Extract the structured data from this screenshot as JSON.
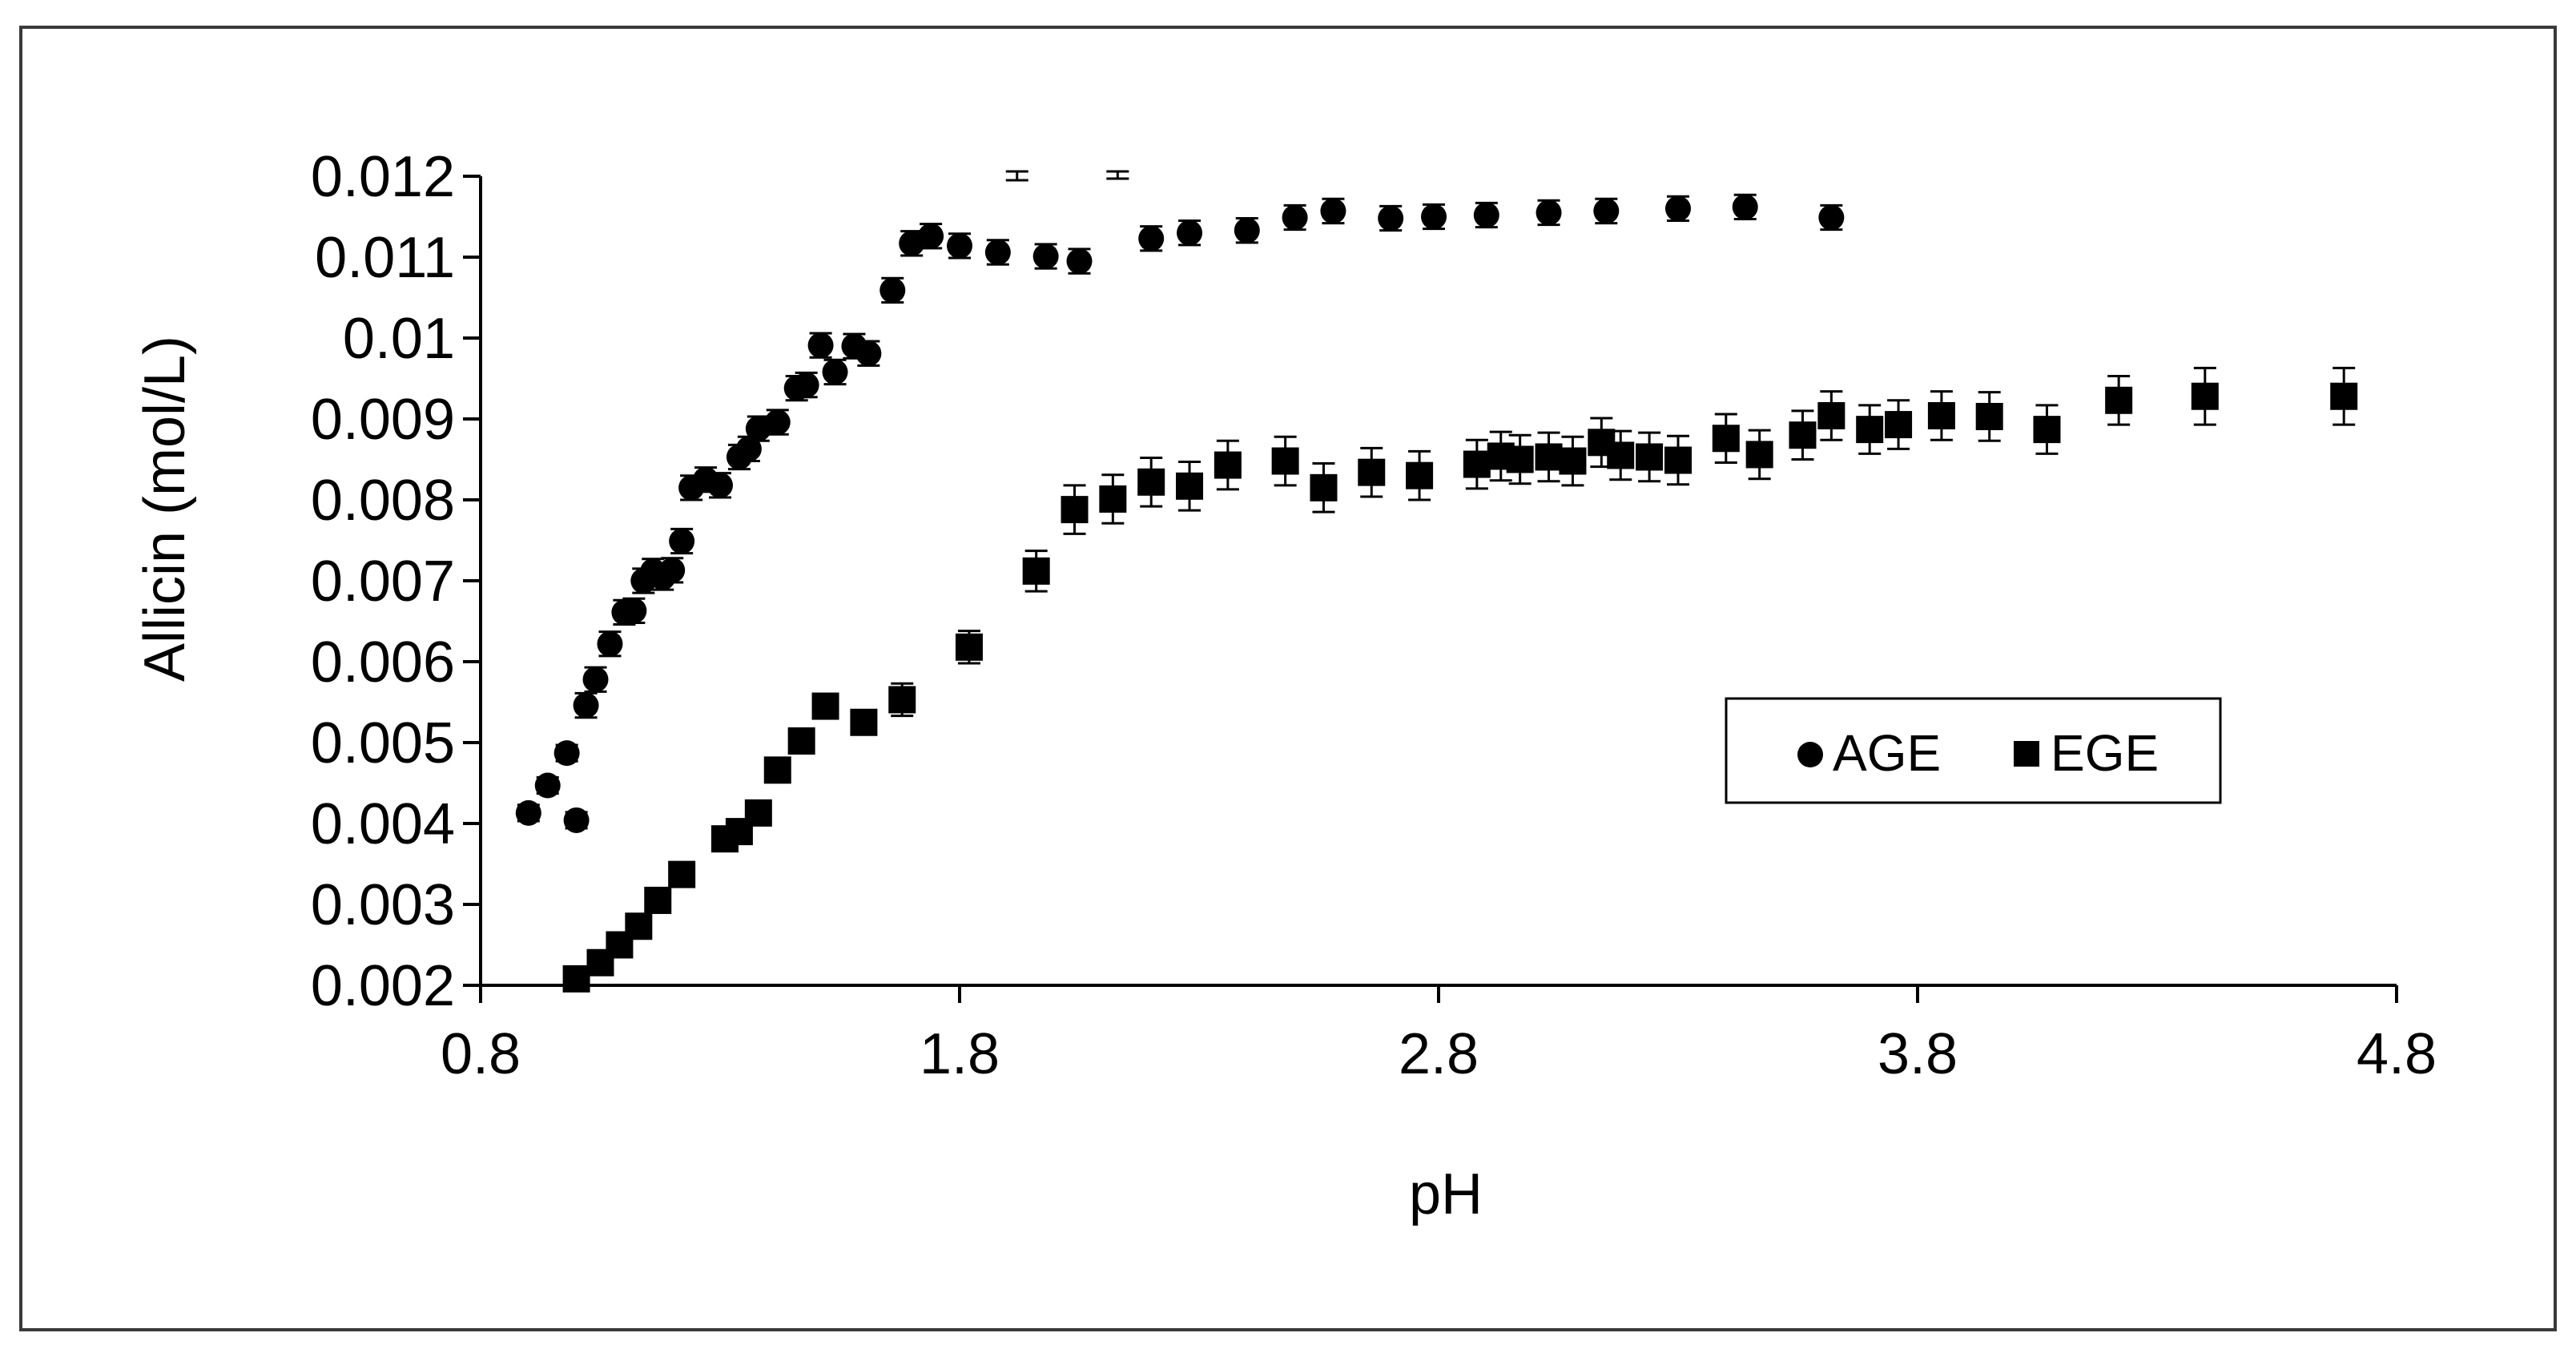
{
  "chart_data": {
    "type": "scatter",
    "title": "",
    "xlabel": "pH",
    "ylabel": "Allicin (mol/L)",
    "xlim": [
      0.8,
      4.8
    ],
    "ylim": [
      0.002,
      0.012
    ],
    "x_ticks": [
      "0.8",
      "1.8",
      "2.8",
      "3.8",
      "4.8"
    ],
    "y_ticks": [
      "0.002",
      "0.003",
      "0.004",
      "0.005",
      "0.006",
      "0.007",
      "0.008",
      "0.009",
      "0.01",
      "0.011",
      "0.012"
    ],
    "grid": false,
    "legend_position": "right",
    "error_bars": true,
    "series": [
      {
        "name": "AGE",
        "marker": "circle",
        "color": "#000000",
        "x": [
          0.9,
          0.94,
          0.98,
          1.0,
          1.02,
          1.04,
          1.07,
          1.1,
          1.12,
          1.14,
          1.16,
          1.18,
          1.2,
          1.22,
          1.24,
          1.27,
          1.3,
          1.34,
          1.36,
          1.38,
          1.42,
          1.46,
          1.48,
          1.51,
          1.54,
          1.58,
          1.61,
          1.66,
          1.7,
          1.74,
          1.8,
          1.88,
          1.92,
          1.98,
          2.05,
          2.13,
          2.2,
          2.28,
          2.4,
          2.5,
          2.58,
          2.7,
          2.79,
          2.9,
          3.03,
          3.15,
          3.3,
          3.44,
          3.62
        ],
        "y": [
          0.00413,
          0.00447,
          0.00487,
          0.00404,
          0.00546,
          0.00578,
          0.00622,
          0.00661,
          0.00663,
          0.007,
          0.00712,
          0.00704,
          0.00713,
          0.00749,
          0.00815,
          0.00825,
          0.00818,
          0.00853,
          0.00863,
          0.00888,
          0.00896,
          0.00938,
          0.00942,
          0.00991,
          0.00958,
          0.0099,
          0.00981,
          0.01059,
          0.01117,
          0.01126,
          0.01114,
          0.01106,
          0.0121,
          0.01101,
          0.01095,
          0.01212,
          0.01123,
          0.0113,
          0.01133,
          0.01149,
          0.01157,
          0.01148,
          0.0115,
          0.01152,
          0.01155,
          0.01157,
          0.0116,
          0.01162,
          0.01149
        ],
        "error": [
          0.0001,
          0.0001,
          0.0001,
          0.0001,
          0.00015,
          0.00015,
          0.00015,
          0.00015,
          0.00015,
          0.00015,
          0.00015,
          0.00015,
          0.00015,
          0.00015,
          0.00015,
          0.00015,
          0.00015,
          0.00015,
          0.00015,
          0.00015,
          0.00015,
          0.00015,
          0.00015,
          0.00015,
          0.00015,
          0.00015,
          0.00015,
          0.00015,
          0.00015,
          0.00015,
          0.00015,
          0.00015,
          0.00015,
          0.00015,
          0.00015,
          0.00015,
          0.00015,
          0.00015,
          0.00015,
          0.00015,
          0.00015,
          0.00015,
          0.00015,
          0.00015,
          0.00015,
          0.00015,
          0.00015,
          0.00015,
          0.00015
        ]
      },
      {
        "name": "EGE",
        "marker": "square",
        "color": "#000000",
        "x": [
          1.0,
          1.05,
          1.09,
          1.13,
          1.17,
          1.22,
          1.31,
          1.34,
          1.38,
          1.42,
          1.47,
          1.52,
          1.6,
          1.68,
          1.82,
          1.96,
          2.04,
          2.12,
          2.2,
          2.28,
          2.36,
          2.48,
          2.56,
          2.66,
          2.76,
          2.88,
          2.93,
          2.97,
          3.03,
          3.08,
          3.14,
          3.18,
          3.24,
          3.3,
          3.4,
          3.47,
          3.56,
          3.62,
          3.7,
          3.76,
          3.85,
          3.95,
          4.07,
          4.22,
          4.4,
          4.69
        ],
        "y": [
          0.00208,
          0.00228,
          0.0025,
          0.00273,
          0.00305,
          0.00337,
          0.00381,
          0.0039,
          0.00413,
          0.00466,
          0.00502,
          0.00545,
          0.00525,
          0.00553,
          0.00618,
          0.00712,
          0.00788,
          0.00801,
          0.00822,
          0.00817,
          0.00843,
          0.00848,
          0.00815,
          0.00834,
          0.0083,
          0.00844,
          0.00854,
          0.0085,
          0.00853,
          0.00848,
          0.00871,
          0.00855,
          0.00853,
          0.00849,
          0.00876,
          0.00856,
          0.0088,
          0.00904,
          0.00887,
          0.00893,
          0.00904,
          0.00903,
          0.00887,
          0.00923,
          0.00928,
          0.00928
        ],
        "error": [
          0.0001,
          0.0001,
          0.0001,
          0.0001,
          0.0001,
          0.0001,
          0.0001,
          0.0001,
          0.0001,
          0.00015,
          0.00015,
          0.00015,
          0.00015,
          0.0002,
          0.0002,
          0.00025,
          0.0003,
          0.0003,
          0.0003,
          0.0003,
          0.0003,
          0.0003,
          0.0003,
          0.0003,
          0.0003,
          0.0003,
          0.0003,
          0.0003,
          0.0003,
          0.0003,
          0.0003,
          0.0003,
          0.0003,
          0.0003,
          0.0003,
          0.0003,
          0.0003,
          0.0003,
          0.0003,
          0.0003,
          0.0003,
          0.0003,
          0.0003,
          0.0003,
          0.00035,
          0.00035
        ]
      }
    ]
  }
}
